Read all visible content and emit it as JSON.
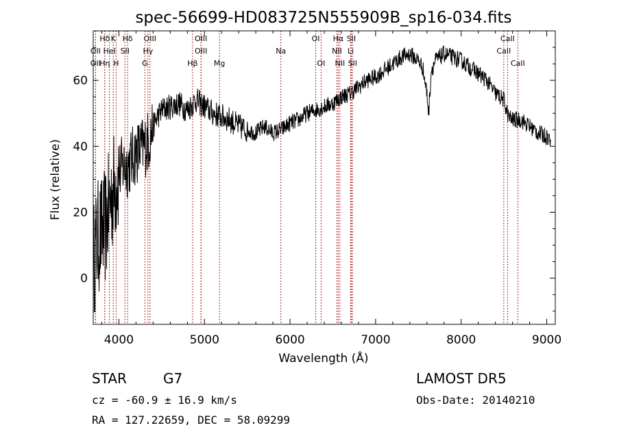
{
  "chart_data": {
    "type": "line",
    "title": "spec-56699-HD083725N555909B_sp16-034.fits",
    "xlabel": "Wavelength (Å)",
    "ylabel": "Flux (relative)",
    "xlim": [
      3700,
      9100
    ],
    "ylim": [
      -14,
      75
    ],
    "xticks": [
      4000,
      5000,
      6000,
      7000,
      8000,
      9000
    ],
    "yticks": [
      0,
      20,
      40,
      60
    ],
    "grid": false,
    "legend": "none",
    "line_color": "#000000",
    "marker_color": "#b22222",
    "series": [
      {
        "x": [
          3700,
          3750,
          3800,
          3850,
          3900,
          3950,
          4000,
          4050,
          4100,
          4150,
          4200,
          4250,
          4300,
          4350,
          4400,
          4450,
          4500,
          4600,
          4700,
          4800,
          4900,
          5000,
          5100,
          5200,
          5300,
          5400,
          5500,
          5600,
          5700,
          5800,
          5900,
          6000,
          6100,
          6200,
          6300,
          6400,
          6500,
          6600,
          6700,
          6800,
          6900,
          7000,
          7100,
          7200,
          7300,
          7400,
          7500,
          7550,
          7600,
          7620,
          7650,
          7700,
          7800,
          7900,
          8000,
          8100,
          8200,
          8300,
          8400,
          8500,
          8550,
          8600,
          8700,
          8800,
          8900,
          9000,
          9050
        ],
        "y": [
          5,
          12,
          14,
          16,
          24,
          28,
          32,
          34,
          34,
          36,
          38,
          39,
          40,
          42,
          46,
          49,
          51,
          52,
          53,
          51,
          54,
          52,
          50,
          49,
          48,
          46,
          45,
          44,
          46,
          44,
          45,
          47,
          48,
          50,
          51,
          52,
          53,
          55,
          56,
          58,
          60,
          61,
          63,
          65,
          67,
          68,
          66,
          64,
          56,
          50,
          63,
          66,
          68,
          67,
          66,
          64,
          62,
          60,
          56,
          54,
          49,
          48,
          48,
          46,
          44,
          43,
          42
        ]
      }
    ],
    "lines": [
      {
        "label": "Hδ",
        "x": 3835,
        "row": 0
      },
      {
        "label": "K",
        "x": 3934,
        "row": 0
      },
      {
        "label": "Hδ",
        "x": 4102,
        "row": 0
      },
      {
        "label": "OIII",
        "x": 4363,
        "row": 0
      },
      {
        "label": "OIII",
        "x": 4959,
        "row": 0
      },
      {
        "label": "OI",
        "x": 6300,
        "row": 0
      },
      {
        "label": "Hα",
        "x": 6563,
        "row": 0
      },
      {
        "label": "SII",
        "x": 6716,
        "row": 0
      },
      {
        "label": "CaII",
        "x": 8542,
        "row": 0
      },
      {
        "label": "OII",
        "x": 3727,
        "row": 1
      },
      {
        "label": "HeI",
        "x": 3889,
        "row": 1
      },
      {
        "label": "SII",
        "x": 4070,
        "row": 1
      },
      {
        "label": "Hγ",
        "x": 4340,
        "row": 1
      },
      {
        "label": "OIII",
        "x": 4959,
        "row": 1
      },
      {
        "label": "Na",
        "x": 5893,
        "row": 1
      },
      {
        "label": "NII",
        "x": 6548,
        "row": 1
      },
      {
        "label": "Li",
        "x": 6708,
        "row": 1
      },
      {
        "label": "CaII",
        "x": 8498,
        "row": 1
      },
      {
        "label": "OII",
        "x": 3727,
        "row": 2
      },
      {
        "label": "Hη",
        "x": 3835,
        "row": 2
      },
      {
        "label": "H",
        "x": 3968,
        "row": 2
      },
      {
        "label": "G",
        "x": 4304,
        "row": 2
      },
      {
        "label": "Hβ",
        "x": 4861,
        "row": 2
      },
      {
        "label": "Mg",
        "x": 5175,
        "row": 2
      },
      {
        "label": "OI",
        "x": 6363,
        "row": 2
      },
      {
        "label": "NII",
        "x": 6583,
        "row": 2
      },
      {
        "label": "SII",
        "x": 6731,
        "row": 2
      },
      {
        "label": "CaII",
        "x": 8662,
        "row": 2
      }
    ]
  },
  "info": {
    "object_class": "STAR",
    "subclass": "G7",
    "survey": "LAMOST DR5",
    "cz": "cz = -60.9 ± 16.9 km/s",
    "obs_date": "Obs-Date: 20140210",
    "coords": "RA = 127.22659, DEC =  58.09299"
  }
}
